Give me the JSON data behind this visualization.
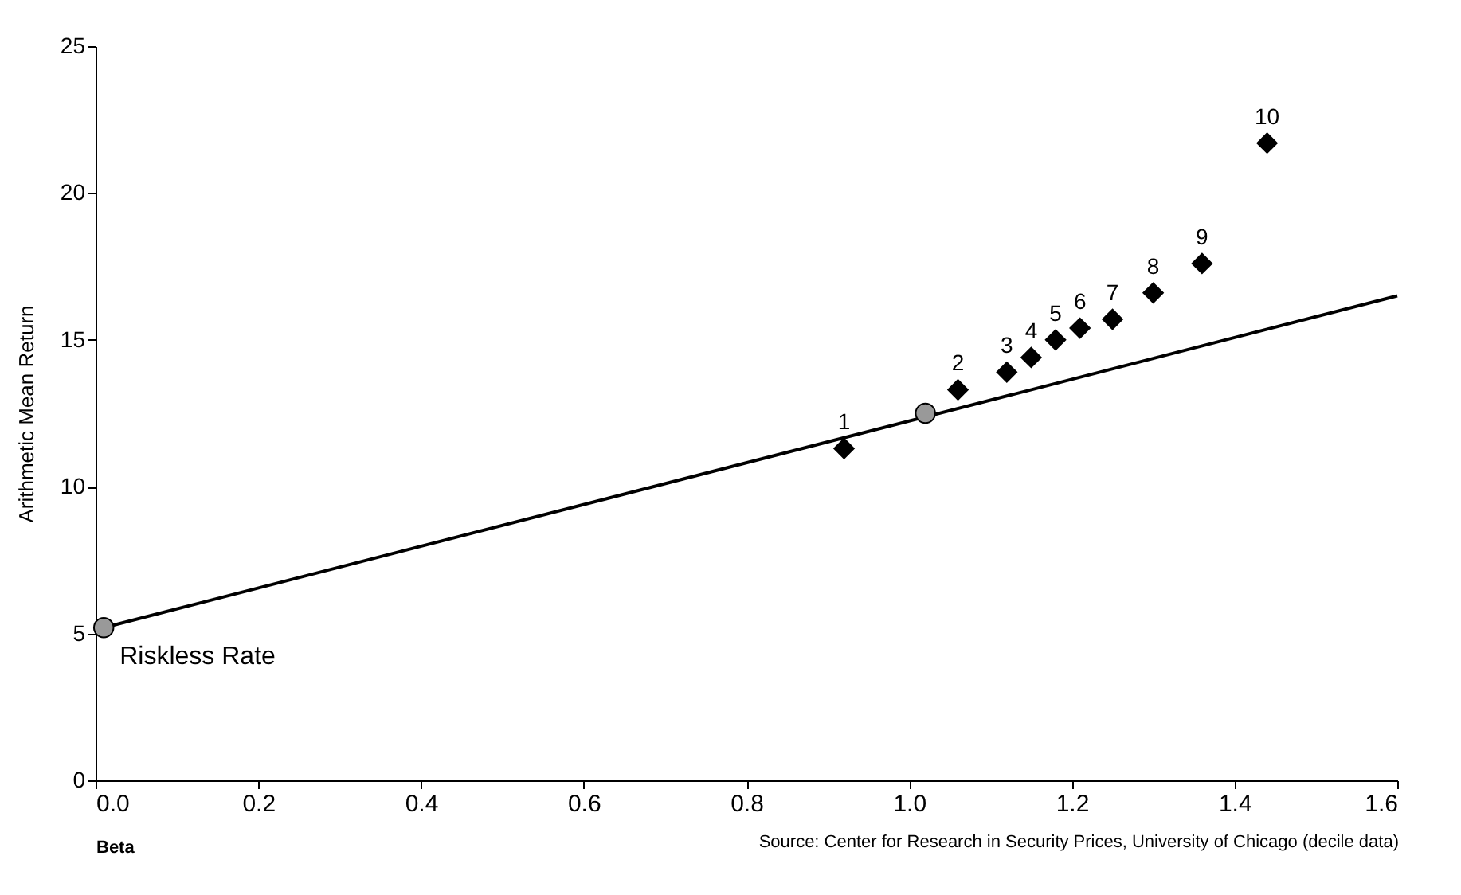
{
  "chart_data": {
    "type": "scatter",
    "xlabel": "Beta",
    "ylabel": "Arithmetic Mean Return",
    "xlim": [
      0,
      1.6
    ],
    "ylim": [
      0,
      25
    ],
    "xticks": [
      {
        "value": 0,
        "label": "0.0"
      },
      0.2,
      0.4,
      0.6,
      0.8,
      {
        "value": 1,
        "label": "1.0"
      },
      1.2,
      1.4,
      1.6
    ],
    "yticks": [
      0,
      5,
      10,
      15,
      20,
      25
    ],
    "grid": false,
    "series": [
      {
        "type": "line",
        "color": "#000000",
        "marker": "none",
        "x": [
          0.01,
          1.6
        ],
        "values": [
          5.2,
          16.5
        ]
      },
      {
        "color": "#999999",
        "marker": "circle",
        "x": [
          0.01,
          1.02
        ],
        "values": [
          5.2,
          12.5
        ]
      },
      {
        "color": "#000000",
        "marker": "diamond",
        "x": [
          0.92,
          1.06,
          1.12,
          1.15,
          1.18,
          1.21,
          1.25,
          1.3,
          1.36,
          1.44
        ],
        "values": [
          11.3,
          13.3,
          13.9,
          14.4,
          15.0,
          15.4,
          15.7,
          16.6,
          17.6,
          21.7
        ]
      }
    ],
    "annotations": [
      {
        "text": "Riskless Rate",
        "x": 0.01,
        "y": 5.2
      },
      {
        "text": "1",
        "x": 0.92,
        "y": 11.3
      },
      {
        "text": "2",
        "x": 1.06,
        "y": 13.3
      },
      {
        "text": "3",
        "x": 1.12,
        "y": 13.9
      },
      {
        "text": "4",
        "x": 1.15,
        "y": 14.4
      },
      {
        "text": "5",
        "x": 1.18,
        "y": 15.0
      },
      {
        "text": "6",
        "x": 1.21,
        "y": 15.4
      },
      {
        "text": "7",
        "x": 1.25,
        "y": 15.7
      },
      {
        "text": "8",
        "x": 1.3,
        "y": 16.6
      },
      {
        "text": "9",
        "x": 1.36,
        "y": 17.6
      },
      {
        "text": "10",
        "x": 1.44,
        "y": 21.7
      },
      "Source: Center for Research in Security Prices, University of Chicago (decile data)"
    ]
  }
}
